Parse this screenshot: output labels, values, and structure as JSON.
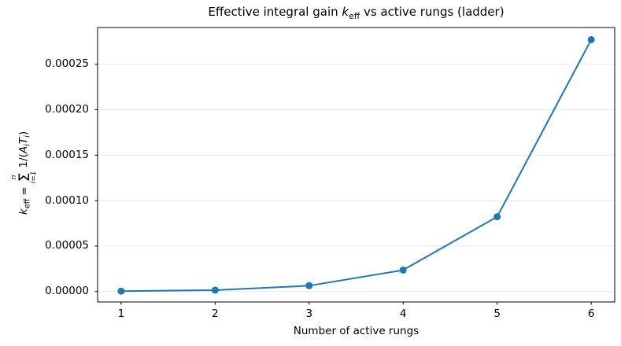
{
  "chart_data": {
    "type": "line",
    "title": "Effective integral gain k_eff vs active rungs (ladder)",
    "title_parts": {
      "prefix": "Effective integral gain ",
      "var": "k",
      "var_sub": "eff",
      "suffix": " vs active rungs (ladder)"
    },
    "xlabel": "Number of active rungs",
    "ylabel": "k_eff = Σ_{i=1}^{n} 1/(A_i T_i)",
    "ylabel_parts": {
      "var": "k",
      "var_sub": "eff",
      "equals": "=",
      "sum_upper": "n",
      "sum_symbol": "Σ",
      "sum_lower": "i=1",
      "term_prefix": "1/(",
      "term_A": "A",
      "term_A_sub": "i",
      "term_T": "T",
      "term_T_sub": "i",
      "term_suffix": ")"
    },
    "x": [
      1,
      2,
      3,
      4,
      5,
      6
    ],
    "y": [
      4e-07,
      1.5e-06,
      6.4e-06,
      2.36e-05,
      8.22e-05,
      0.000277
    ],
    "xtick_labels": [
      "1",
      "2",
      "3",
      "4",
      "5",
      "6"
    ],
    "ytick_values": [
      0.0,
      5e-05,
      0.0001,
      0.00015,
      0.0002,
      0.00025
    ],
    "ytick_labels": [
      "0.00000",
      "0.00005",
      "0.00010",
      "0.00015",
      "0.00020",
      "0.00025"
    ],
    "xlim": [
      0.75,
      6.25
    ],
    "ylim": [
      -1.15e-05,
      0.0002904
    ],
    "grid": {
      "axis": "y",
      "visible": true
    },
    "legend": "none",
    "marker": "circle",
    "colors": {
      "line": "#1f77b4",
      "grid": "#e8e8e8",
      "spine": "#000000",
      "text": "#000000"
    }
  }
}
